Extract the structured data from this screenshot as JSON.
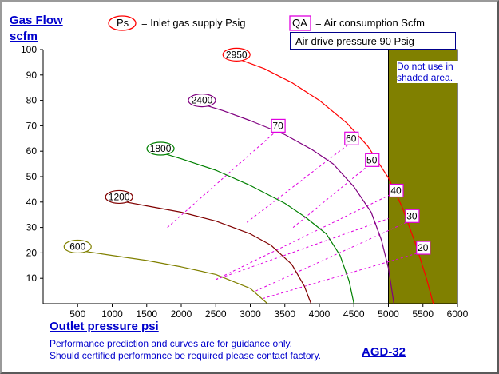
{
  "labels": {
    "y_line1": "Gas Flow",
    "y_line2": "scfm",
    "x": "Outlet pressure   psi",
    "note_line1": "Performance prediction and curves are for guidance only.",
    "note_line2": "Should certified performance be required please contact factory.",
    "model": "AGD-32",
    "legend_ps_symbol": "Ps",
    "legend_ps_text": "= Inlet gas supply  Psig",
    "legend_qa_symbol": "QA",
    "legend_qa_text": "= Air consumption  Scfm",
    "drive_pressure": "Air drive pressure  90 Psig",
    "shaded_note": "Do not use in shaded area."
  },
  "colors": {
    "ps_600": "#808000",
    "ps_1200": "#800000",
    "ps_1800": "#008000",
    "ps_2400": "#800080",
    "ps_2950": "#ff0000",
    "qa_lines": "#e000e0",
    "shade": "#808000",
    "text_blue": "#0000cc"
  },
  "chart_data": {
    "type": "line",
    "xlim": [
      0,
      6000
    ],
    "ylim": [
      0,
      100
    ],
    "x_ticks": [
      500,
      1000,
      1500,
      2000,
      2500,
      3000,
      3500,
      4000,
      4500,
      5000,
      5500,
      6000
    ],
    "y_ticks": [
      10,
      20,
      30,
      40,
      50,
      60,
      70,
      80,
      90,
      100
    ],
    "shaded_region_x": [
      5000,
      6000
    ],
    "series": [
      {
        "name": "600",
        "color": "#808000",
        "x": [
          500,
          1000,
          1500,
          2000,
          2500,
          3000,
          3250
        ],
        "y": [
          21,
          19,
          17,
          14.5,
          11.5,
          6,
          0
        ]
      },
      {
        "name": "1200",
        "color": "#800000",
        "x": [
          1100,
          1500,
          2000,
          2500,
          3000,
          3300,
          3600,
          3780,
          3880
        ],
        "y": [
          40.5,
          38.5,
          36,
          32.5,
          27.5,
          23,
          15.5,
          7,
          0
        ]
      },
      {
        "name": "1800",
        "color": "#008000",
        "x": [
          1700,
          2000,
          2500,
          3000,
          3500,
          3800,
          4100,
          4300,
          4430,
          4500
        ],
        "y": [
          59.5,
          57,
          52.5,
          46.5,
          39.5,
          34,
          27.5,
          19,
          9,
          0
        ]
      },
      {
        "name": "2400",
        "color": "#800080",
        "x": [
          2300,
          2600,
          3000,
          3500,
          3900,
          4200,
          4500,
          4750,
          4900,
          5000,
          5080
        ],
        "y": [
          78.5,
          76,
          72,
          66.5,
          60.5,
          55,
          46,
          36,
          25,
          14,
          0
        ]
      },
      {
        "name": "2950",
        "color": "#ff0000",
        "x": [
          2800,
          3200,
          3600,
          4000,
          4400,
          4700,
          5000,
          5200,
          5400,
          5550,
          5650
        ],
        "y": [
          96.5,
          92.5,
          87,
          80,
          71,
          62,
          49.5,
          38,
          23,
          10,
          0
        ]
      }
    ],
    "air_consumption_lines": [
      {
        "label": "70",
        "x": [
          1800,
          3400
        ],
        "y": [
          30,
          68.5
        ]
      },
      {
        "label": "60",
        "x": [
          2950,
          4460
        ],
        "y": [
          32,
          63.5
        ]
      },
      {
        "label": "50",
        "x": [
          3620,
          4760
        ],
        "y": [
          30,
          55.5
        ]
      },
      {
        "label": "40",
        "x": [
          2500,
          5110
        ],
        "y": [
          9.5,
          44
        ]
      },
      {
        "label": "30",
        "x": [
          3080,
          5340
        ],
        "y": [
          5,
          33
        ]
      },
      {
        "label": "20",
        "x": [
          3180,
          5500
        ],
        "y": [
          2,
          20.5
        ]
      },
      {
        "label": "",
        "x": [
          2500,
          5000
        ],
        "y": [
          9.5,
          33.5
        ]
      }
    ],
    "air_consumption_labels": [
      {
        "label": "70",
        "x": 3400,
        "y": 70
      },
      {
        "label": "60",
        "x": 4460,
        "y": 65
      },
      {
        "label": "50",
        "x": 4760,
        "y": 56.5
      },
      {
        "label": "40",
        "x": 5110,
        "y": 44.5
      },
      {
        "label": "30",
        "x": 5340,
        "y": 34.5
      },
      {
        "label": "20",
        "x": 5500,
        "y": 22
      }
    ],
    "series_labels": [
      {
        "label": "600",
        "x": 500,
        "y": 22.5
      },
      {
        "label": "1200",
        "x": 1100,
        "y": 42
      },
      {
        "label": "1800",
        "x": 1700,
        "y": 61
      },
      {
        "label": "2400",
        "x": 2300,
        "y": 80
      },
      {
        "label": "2950",
        "x": 2800,
        "y": 98
      }
    ]
  }
}
